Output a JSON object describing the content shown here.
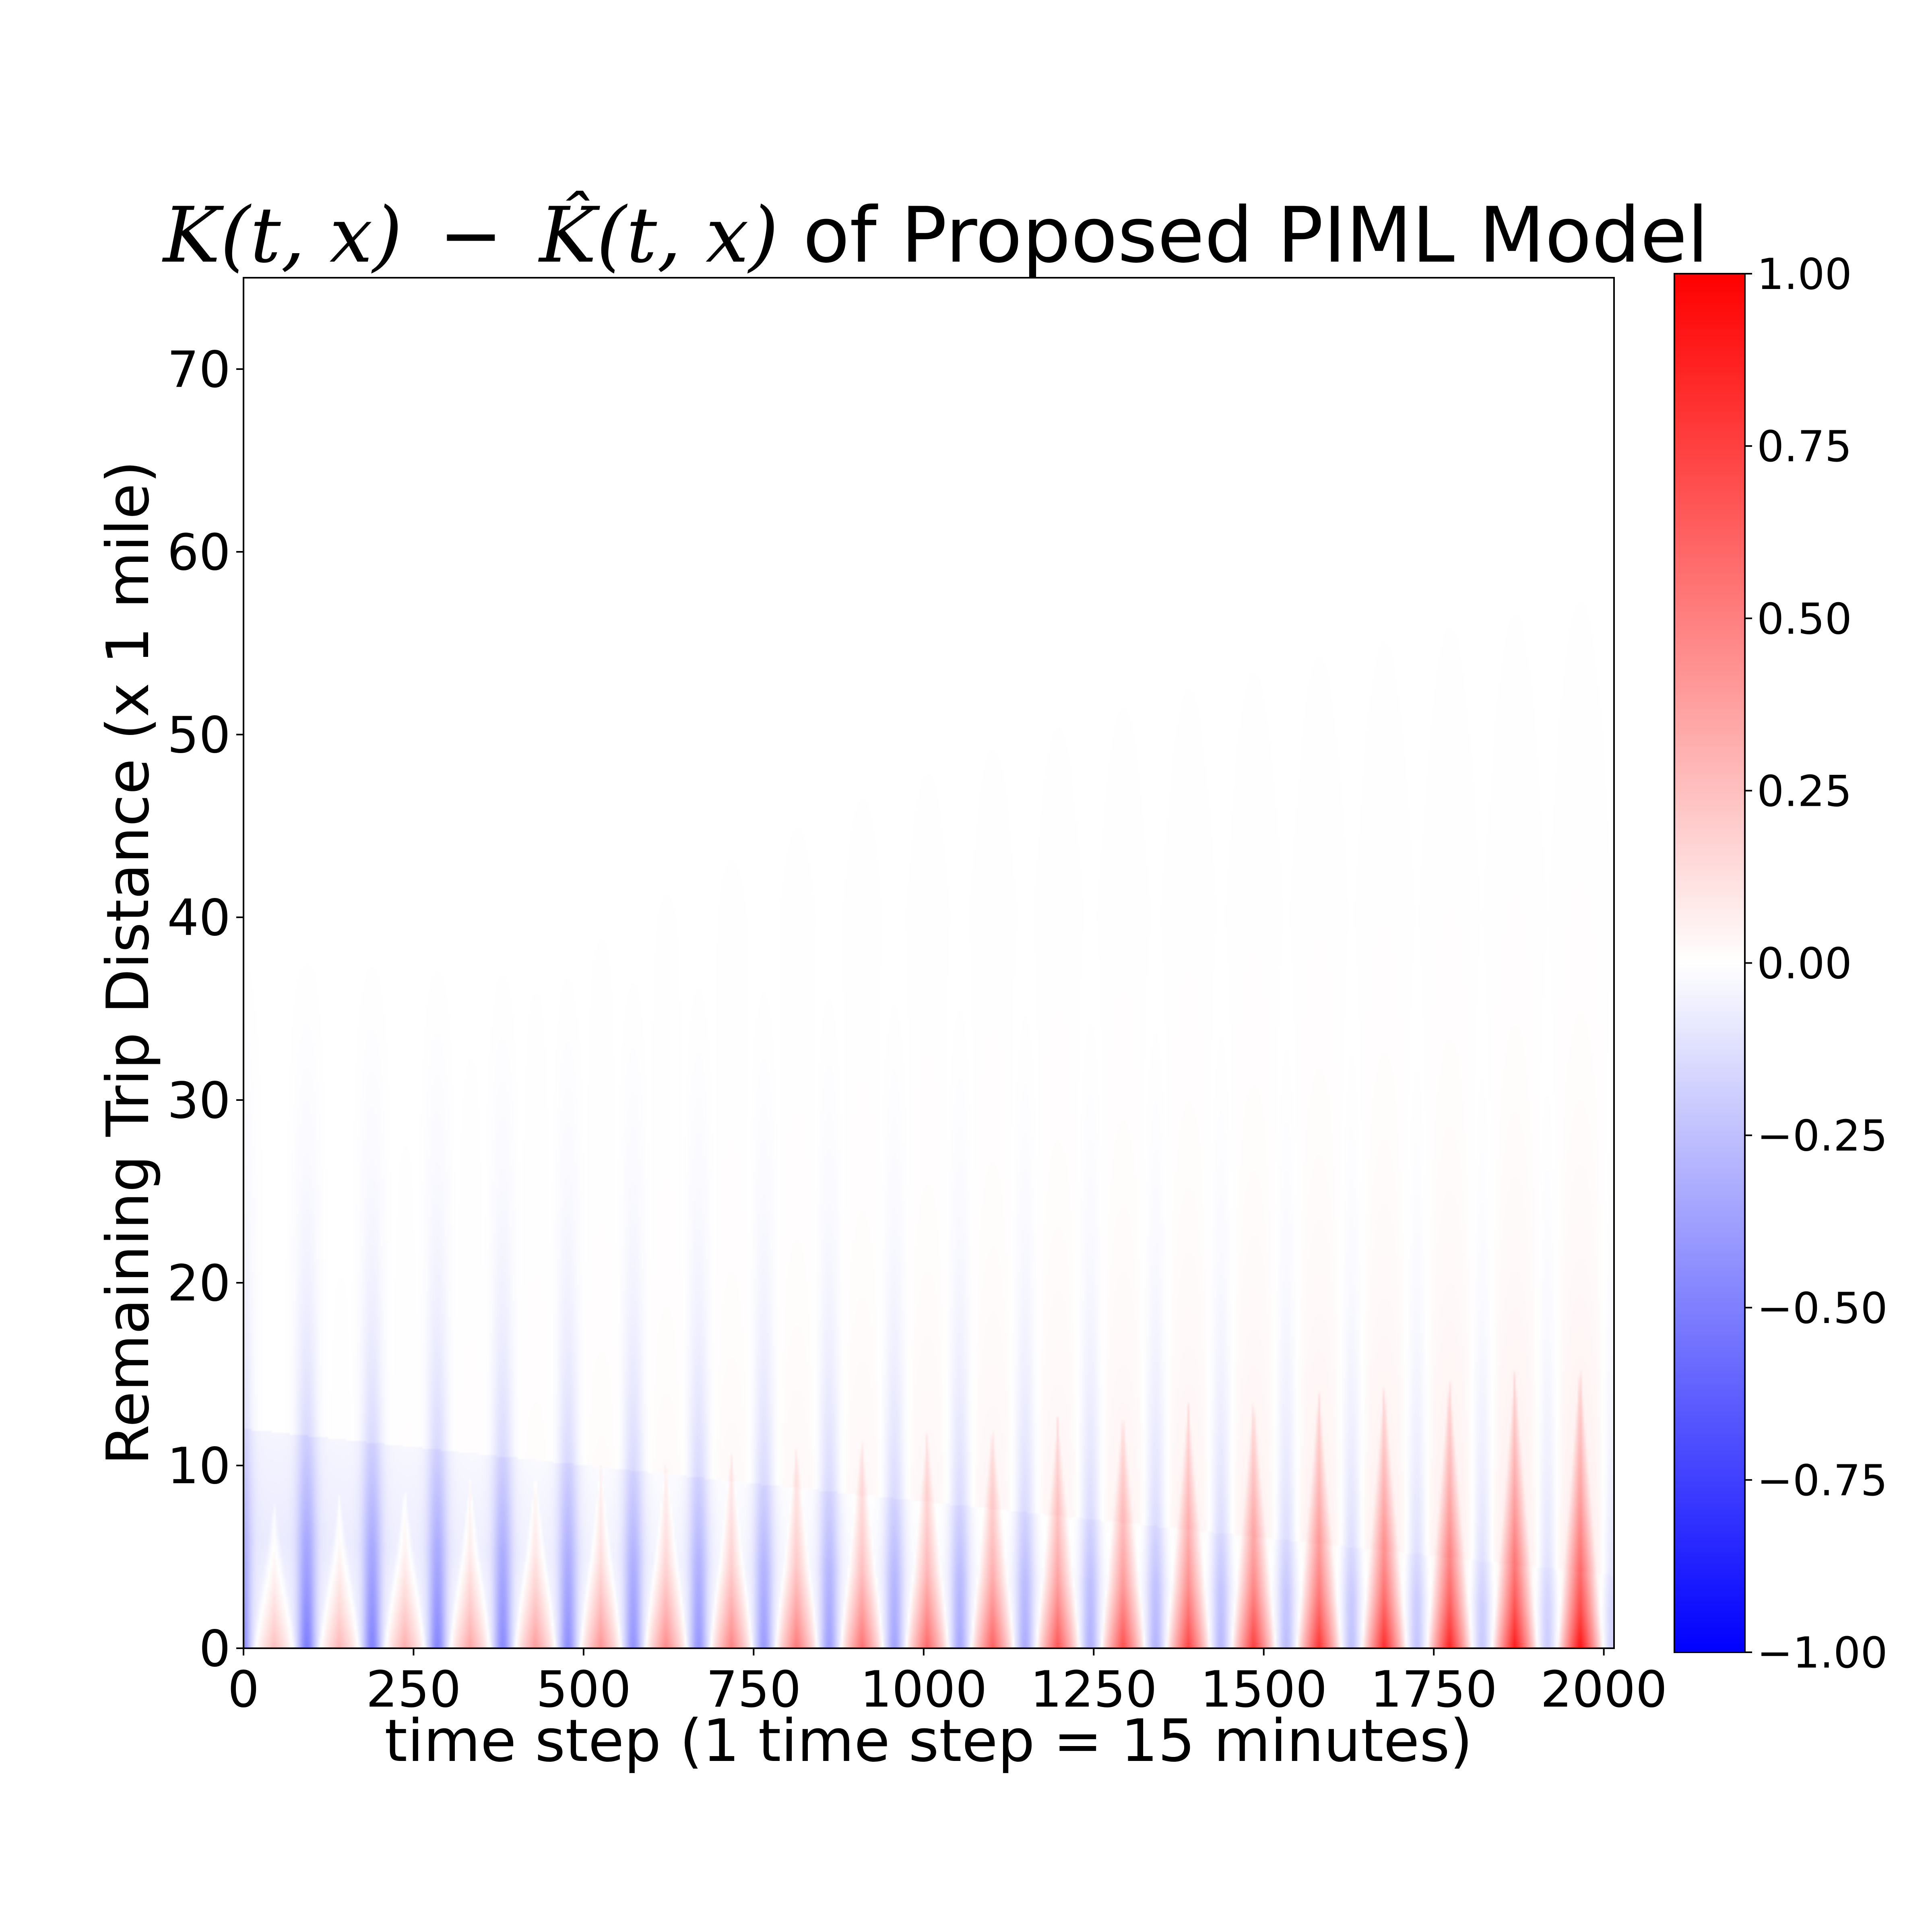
{
  "chart_data": {
    "type": "heatmap",
    "title": {
      "lhs": "K(t, x)",
      "minus": "−",
      "rhs": "K̂(t, x)",
      "suffix": " of Proposed PIML Model"
    },
    "xlabel": "time step (1 time step = 15 minutes)",
    "ylabel": "Remaining Trip Distance (x 1 mile)",
    "xlim": [
      0,
      2015
    ],
    "ylim": [
      0,
      75
    ],
    "xticks": [
      0,
      250,
      500,
      750,
      1000,
      1250,
      1500,
      1750,
      2000
    ],
    "xtick_labels": [
      "0",
      "250",
      "500",
      "750",
      "1000",
      "1250",
      "1500",
      "1750",
      "2000"
    ],
    "yticks": [
      0,
      10,
      20,
      30,
      40,
      50,
      60,
      70
    ],
    "ytick_labels": [
      "0",
      "10",
      "20",
      "30",
      "40",
      "50",
      "60",
      "70"
    ],
    "colormap": "bwr",
    "colorbar": {
      "vmin": -1.0,
      "vmax": 1.0,
      "ticks": [
        1.0,
        0.75,
        0.5,
        0.25,
        0.0,
        -0.25,
        -0.5,
        -0.75,
        -1.0
      ],
      "tick_labels": [
        "1.00",
        "0.75",
        "0.50",
        "0.25",
        "0.00",
        "−0.25",
        "−0.50",
        "−0.75",
        "−1.00"
      ]
    },
    "colors": {
      "negative": "#0000ff",
      "zero": "#ffffff",
      "positive": "#ff0000"
    },
    "pattern": {
      "description_of_values": "Periodic daily cycles (period ~96 time steps): red (positive) cones near x=0 widening to ~x=5, blue (negative) streaks between them extending to ~x=40; blue dominates early, red intensifies toward later time steps",
      "period": 96,
      "first_peak_t": 45,
      "cone_height_start": 5,
      "cone_height_end": 10,
      "red_amplitude_start": 0.28,
      "red_amplitude_end": 0.85,
      "blue_amplitude_start": 0.3,
      "blue_amplitude_end": 0.12,
      "streak_top": 40,
      "blue_band_height_start": 12,
      "blue_band_height_end": 4
    }
  }
}
